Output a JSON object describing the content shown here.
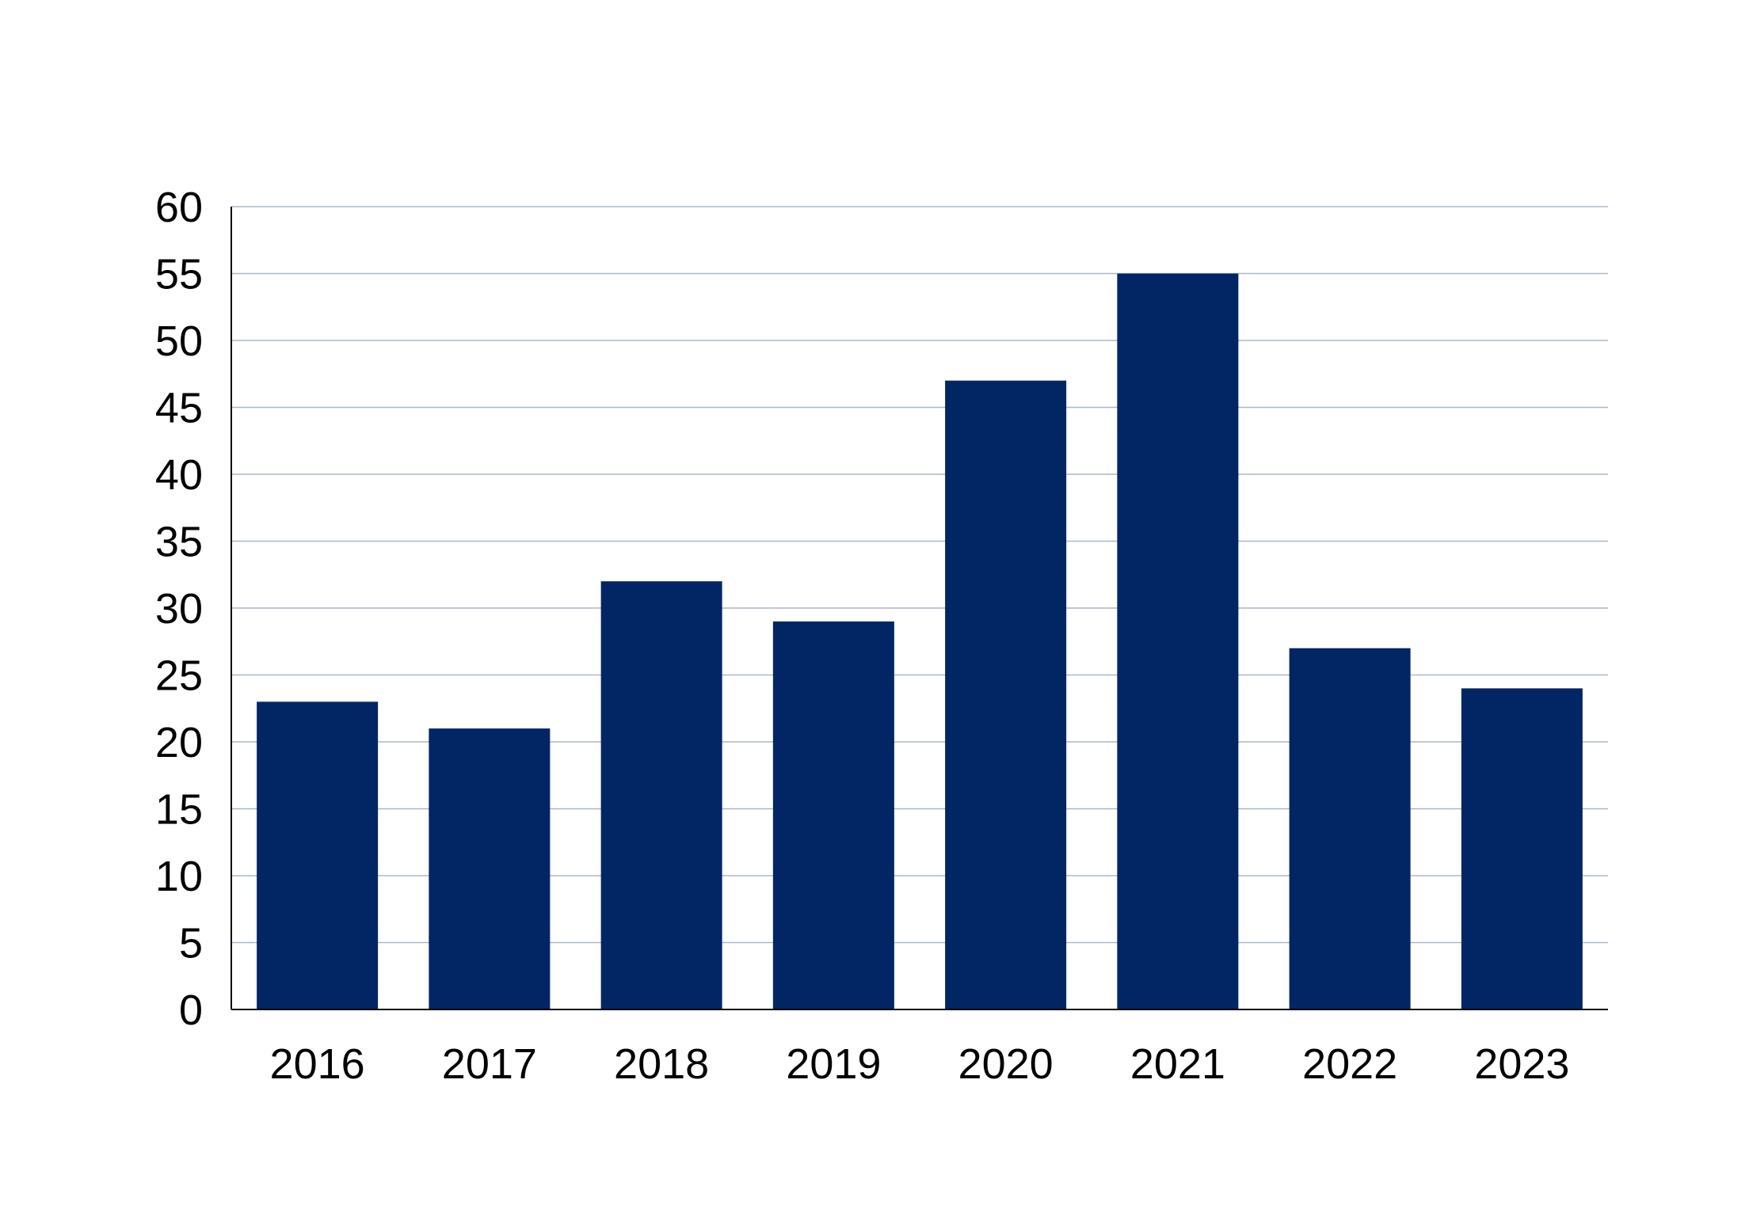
{
  "chart_data": {
    "type": "bar",
    "categories": [
      "2016",
      "2017",
      "2018",
      "2019",
      "2020",
      "2021",
      "2022",
      "2023"
    ],
    "values": [
      23,
      21,
      32,
      29,
      47,
      55,
      27,
      24
    ],
    "title": "",
    "xlabel": "",
    "ylabel": "",
    "ylim": [
      0,
      60
    ],
    "yticks": [
      0,
      5,
      10,
      15,
      20,
      25,
      30,
      35,
      40,
      45,
      50,
      55,
      60
    ],
    "grid": true,
    "legend": "none"
  },
  "colors": {
    "bar": "#022663",
    "grid": "#a9b8c9",
    "axis": "#000000",
    "text": "#000000"
  }
}
